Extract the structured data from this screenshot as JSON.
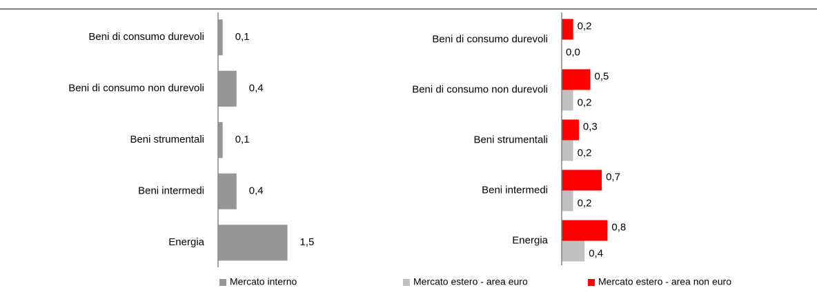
{
  "chart_data": [
    {
      "type": "bar",
      "orientation": "horizontal",
      "categories": [
        "Beni di consumo durevoli",
        "Beni di consumo non durevoli",
        "Beni strumentali",
        "Beni intermedi",
        "Energia"
      ],
      "series": [
        {
          "name": "Mercato interno",
          "color": "#969696",
          "values": [
            0.1,
            0.4,
            0.1,
            0.4,
            1.5
          ],
          "value_labels": [
            "0,1",
            "0,4",
            "0,1",
            "0,4",
            "1,5"
          ]
        }
      ],
      "xlim": [
        0,
        2
      ],
      "legend": "bottom"
    },
    {
      "type": "bar",
      "orientation": "horizontal",
      "categories": [
        "Beni di consumo durevoli",
        "Beni di consumo non durevoli",
        "Beni strumentali",
        "Beni intermedi",
        "Energia"
      ],
      "series": [
        {
          "name": "Mercato estero - area euro",
          "color": "#c0c0c0",
          "values": [
            0.0,
            0.2,
            0.2,
            0.2,
            0.4
          ],
          "value_labels": [
            "0,0",
            "0,2",
            "0,2",
            "0,2",
            "0,4"
          ]
        },
        {
          "name": "Mercato estero - area non euro",
          "color": "#ff0000",
          "values": [
            0.2,
            0.5,
            0.3,
            0.7,
            0.8
          ],
          "value_labels": [
            "0,2",
            "0,5",
            "0,3",
            "0,7",
            "0,8"
          ]
        }
      ],
      "xlim": [
        0,
        2
      ],
      "legend": "bottom"
    }
  ]
}
